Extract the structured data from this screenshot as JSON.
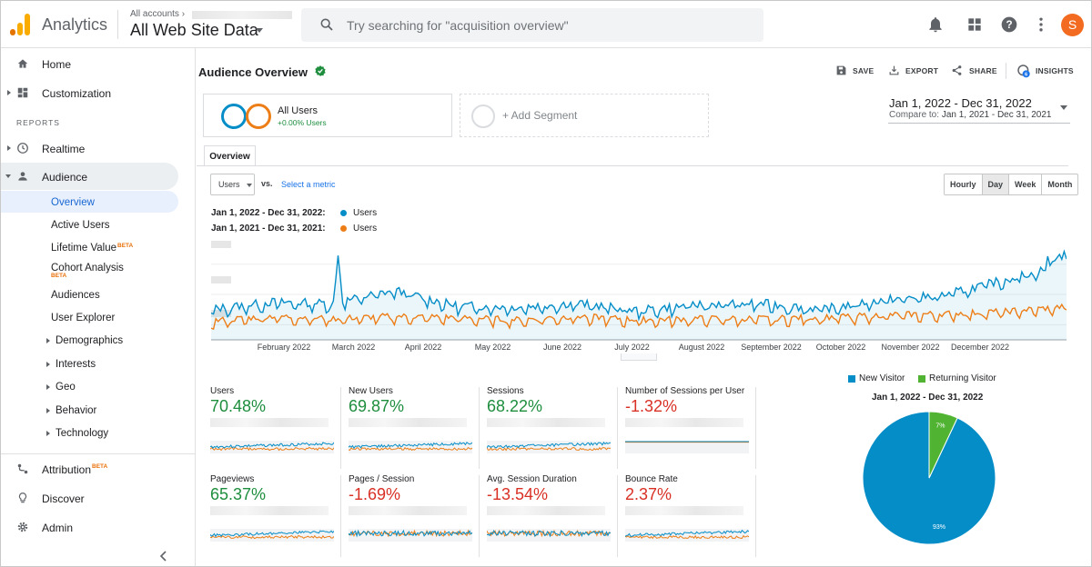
{
  "topbar": {
    "app_name": "Analytics",
    "account_path": "All accounts",
    "property_name": "All Web Site Data",
    "search_placeholder": "Try searching for \"acquisition overview\"",
    "avatar_letter": "S",
    "icons": [
      "bell-icon",
      "apps-grid-icon",
      "help-icon",
      "more-vert-icon"
    ]
  },
  "sidebar": {
    "home": "Home",
    "customization": "Customization",
    "reports_label": "REPORTS",
    "realtime": "Realtime",
    "audience": "Audience",
    "audience_items": {
      "overview": "Overview",
      "active_users": "Active Users",
      "lifetime_value": "Lifetime Value",
      "cohort_analysis": "Cohort Analysis",
      "audiences": "Audiences",
      "user_explorer": "User Explorer",
      "demographics": "Demographics",
      "interests": "Interests",
      "geo": "Geo",
      "behavior": "Behavior",
      "technology": "Technology"
    },
    "beta_badge": "BETA",
    "attribution": "Attribution",
    "discover": "Discover",
    "admin": "Admin"
  },
  "main": {
    "title": "Audience Overview",
    "actions": {
      "save": "SAVE",
      "export": "EXPORT",
      "share": "SHARE",
      "insights": "INSIGHTS",
      "insights_count": "6"
    },
    "segment": {
      "name": "All Users",
      "change": "+0.00% Users",
      "add": "+ Add Segment"
    },
    "date_range": {
      "current": "Jan 1, 2022 - Dec 31, 2022",
      "compare_label": "Compare to:",
      "compare": "Jan 1, 2021 - Dec 31, 2021"
    },
    "tab": "Overview",
    "metric_select": "Users",
    "vs": "vs.",
    "select_metric": "Select a metric",
    "granularity": [
      "Hourly",
      "Day",
      "Week",
      "Month"
    ],
    "granularity_selected": "Day",
    "legend": [
      {
        "range": "Jan 1, 2022 - Dec 31, 2022:",
        "name": "Users",
        "color": "#058dc7"
      },
      {
        "range": "Jan 1, 2021 - Dec 31, 2021:",
        "name": "Users",
        "color": "#ed7e17"
      }
    ]
  },
  "chart_data": [
    {
      "type": "line",
      "x": [
        "February 2022",
        "March 2022",
        "April 2022",
        "May 2022",
        "June 2022",
        "July 2022",
        "August 2022",
        "September 2022",
        "October 2022",
        "November 2022",
        "December 2022"
      ],
      "xlabel": "",
      "ylabel": "",
      "grid": true,
      "series": [
        {
          "name": "Users",
          "color": "#058dc7",
          "relative_values": [
            0.24,
            0.3,
            0.29,
            0.4,
            0.27,
            0.26,
            0.29,
            0.23,
            0.28,
            0.29,
            0.24,
            0.32,
            0.36,
            0.49,
            0.62
          ]
        },
        {
          "name": "Users",
          "color": "#ed7e17",
          "relative_values": [
            0.14,
            0.18,
            0.16,
            0.18,
            0.17,
            0.15,
            0.18,
            0.15,
            0.16,
            0.16,
            0.17,
            0.19,
            0.2,
            0.22,
            0.26
          ]
        }
      ]
    },
    {
      "type": "pie",
      "title": "Jan 1, 2022 - Dec 31, 2022",
      "legend_position": "top",
      "categories": [
        "New Visitor",
        "Returning Visitor"
      ],
      "values": [
        93,
        7
      ],
      "labels": [
        "93%",
        "7%"
      ],
      "colors": [
        "#058dc7",
        "#50b432"
      ]
    }
  ],
  "metrics": [
    {
      "name": "Users",
      "value": "70.48%",
      "trend": "pos"
    },
    {
      "name": "New Users",
      "value": "69.87%",
      "trend": "pos"
    },
    {
      "name": "Sessions",
      "value": "68.22%",
      "trend": "pos"
    },
    {
      "name": "Number of Sessions per User",
      "value": "-1.32%",
      "trend": "neg"
    },
    {
      "name": "Pageviews",
      "value": "65.37%",
      "trend": "pos"
    },
    {
      "name": "Pages / Session",
      "value": "-1.69%",
      "trend": "neg"
    },
    {
      "name": "Avg. Session Duration",
      "value": "-13.54%",
      "trend": "neg"
    },
    {
      "name": "Bounce Rate",
      "value": "2.37%",
      "trend": "neg"
    }
  ]
}
